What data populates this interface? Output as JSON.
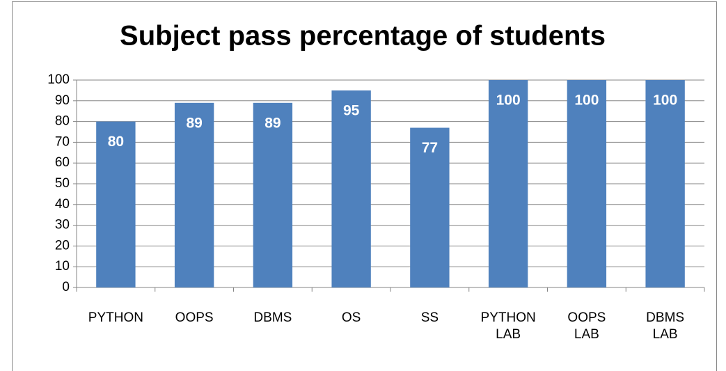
{
  "chart_data": {
    "type": "bar",
    "title": "Subject pass percentage of students",
    "categories": [
      "PYTHON",
      "OOPS",
      "DBMS",
      "OS",
      "SS",
      "PYTHON LAB",
      "OOPS LAB",
      "DBMS LAB"
    ],
    "values": [
      80,
      89,
      89,
      95,
      77,
      100,
      100,
      100
    ],
    "color": "#4f81bd",
    "ylim": [
      0,
      100
    ],
    "yticks": [
      0,
      10,
      20,
      30,
      40,
      50,
      60,
      70,
      80,
      90,
      100
    ],
    "grid": true
  }
}
